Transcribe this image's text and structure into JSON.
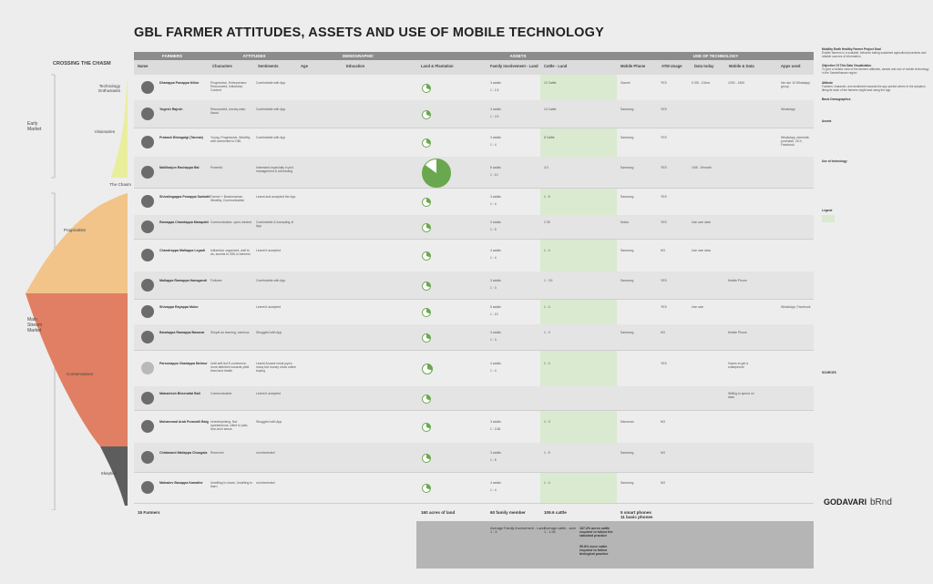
{
  "title": "GBL FARMER ATTITUDES, ASSETS AND USE OF MOBILE TECHNOLOGY",
  "chasm_heading": "CROSSING THE CHASM",
  "bands": {
    "farmers": "FARMERS",
    "attitudes": "ATTITUDES",
    "demographic": "DEMOGRAPHIC",
    "assets": "ASSETS",
    "use_of_technology": "USE OF TECHNOLOGY"
  },
  "columns": {
    "name": "Name",
    "characters": "Characters",
    "sentiments": "Sentiments",
    "age": "Age",
    "education": "Education",
    "land": "Land & Plantation",
    "family": "Family Involvement - Land",
    "cattle": "Cattle - Land",
    "mobile_phone": "Mobile Phone",
    "atm": "ATM Usage",
    "data_today": "Data today",
    "mobile_data": "Mobile & Data",
    "apps": "Apps used"
  },
  "segments": {
    "tech": "Technology Enthusiasts",
    "visionaries": "Visionaries",
    "chasm": "The Chasm",
    "pragmatists": "Pragmatists",
    "conservatives": "Conservatives",
    "skeptics": "Skeptics"
  },
  "groups": {
    "early": "Early Market",
    "main": "Main Stream Market"
  },
  "farmers": [
    {
      "name": "Dharappa Punappa Kittur",
      "character": "Progressive, Entrepreneur Resourceful, Influential, Content",
      "sentiment": "Comfortable with App",
      "family": "3 adults",
      "ratio": "1 : 1.5",
      "cattle": "12 Cattle",
      "phone": "Xiaomi",
      "atm": "YES",
      "data": "5 GB - 10/mo",
      "mdata": "1200 - 1500",
      "apps": "Ide use 10 Whatsapp group."
    },
    {
      "name": "Yogesh Rajesh",
      "character": "Resourceful, money-wise, Naval",
      "sentiment": "Comfortable with App",
      "family": "3 adults",
      "ratio": "1 : 2.5",
      "cattle": "14 Cattle",
      "phone": "Samsung",
      "atm": "YES",
      "data": "",
      "mdata": "",
      "apps": "WhatsApp"
    },
    {
      "name": "Prakash Bheagalgi (Tanmai)",
      "character": "Young, Progressive, Wealthy, well connected to GBL",
      "sentiment": "Comfortable with App",
      "family": "3 adults",
      "ratio": "1 : 4",
      "cattle": "8 Cattle",
      "phone": "Samsung",
      "atm": "YES",
      "data": "",
      "mdata": "",
      "apps": "WhatsApp, domestic purchase, OLX, Facebook"
    },
    {
      "name": "Mallikarjun Rachappa Bal",
      "character": "Powerful",
      "sentiment": "Interested especially in plot management & scheduling",
      "family": "8 adults",
      "ratio": "1 : 10",
      "cattle": "3:3",
      "phone": "Samsung",
      "atm": "YES",
      "data": "1GB - 5/month",
      "mdata": "",
      "apps": ""
    },
    {
      "name": "Shivalingappa Ponappa Sankatti",
      "character": "Farmer + Businessman, Wealthy, Communicative",
      "sentiment": "Learnt and accepted the App",
      "family": "3 adults",
      "ratio": "1 : 4",
      "cattle": "1 : 6",
      "phone": "Samsung",
      "atm": "YES",
      "data": "",
      "mdata": "",
      "apps": ""
    },
    {
      "name": "Ramappa Chandappa Marapatti",
      "character": "Communicative, open-minded",
      "sentiment": "Comfortable & Accepting of App",
      "family": "3 adults",
      "ratio": "1 : 5",
      "cattle": "2.35",
      "phone": "Nokia",
      "atm": "YES",
      "data": "Use own data",
      "mdata": "",
      "apps": ""
    },
    {
      "name": "Chandrappa Mallappa Legadi",
      "character": "Influential, organized, well to do, access to GBL to farmers",
      "sentiment": "Learnt it accepted",
      "family": "4 adults",
      "ratio": "1 : 4",
      "cattle": "1 : 4",
      "phone": "Samsung",
      "atm": "NO",
      "data": "Use own data",
      "mdata": "",
      "apps": ""
    },
    {
      "name": "Mallappa Ramappa Hanagandi",
      "character": "Follower",
      "sentiment": "Comfortable with App",
      "family": "3 adults",
      "ratio": "1 : 3",
      "cattle": "1 : 3.5",
      "phone": "Samsung",
      "atm": "YES",
      "data": "",
      "mdata": "Mobile Phone",
      "apps": ""
    },
    {
      "name": "Shivappa Rayappa Mulur",
      "character": "",
      "sentiment": "Learnt it accepted",
      "family": "5 adults",
      "ratio": "1 : 10",
      "cattle": "1 : 4",
      "phone": "",
      "atm": "YES",
      "data": "Use own",
      "mdata": "",
      "apps": "WhatsApp, Facebook"
    },
    {
      "name": "Baralappa Ramappa Basavar",
      "character": "Simple as learning, cautious",
      "sentiment": "Struggled with App",
      "family": "3 adults",
      "ratio": "1 : 3",
      "cattle": "1 : 3",
      "phone": "Samsung",
      "atm": "NO",
      "data": "",
      "mdata": "Mobile Phone",
      "apps": ""
    },
    {
      "name": "Parsonappa Viradappa Melmur",
      "character": "Until self-led E-commerce, more attentive towards yield than land health",
      "sentiment": "Learnt Around nests joys's many but money show online buying",
      "family": "4 adults",
      "ratio": "1 : 4",
      "cattle": "1 : 4",
      "phone": "",
      "atm": "YES",
      "data": "",
      "mdata": "Hopes to get a smartphone",
      "apps": ""
    },
    {
      "name": "Mahantesh Bheeraltal Bali",
      "character": "Communicative",
      "sentiment": "Learnt it accepted",
      "family": "",
      "ratio": "",
      "cattle": "",
      "phone": "",
      "atm": "",
      "data": "",
      "mdata": "Willing to spend on data",
      "apps": ""
    },
    {
      "name": "Muhammad Arab Puravalli Baig",
      "character": "Unenterprising, Not spontaneous, client to plan, Non-tech sense",
      "sentiment": "Struggled with App",
      "family": "3 adults",
      "ratio": "1 : 3.36",
      "cattle": "1 : 3",
      "phone": "Micromax",
      "atm": "NO",
      "data": "",
      "mdata": "",
      "apps": ""
    },
    {
      "name": "Chidanand Mallappa Chougala",
      "character": "Reserved",
      "sentiment": "not interested",
      "family": "3 adults",
      "ratio": "1 : 5",
      "cattle": "1 : 5",
      "phone": "Samsung",
      "atm": "NO",
      "data": "",
      "mdata": "",
      "apps": ""
    },
    {
      "name": "Mahadev Basappa Kamathe",
      "character": "Unwilling to share, Unwilling to learn",
      "sentiment": "not interested",
      "family": "4 adults",
      "ratio": "1 : 4",
      "cattle": "1 : 4",
      "phone": "Samsung",
      "atm": "NO",
      "data": "",
      "mdata": "",
      "apps": ""
    }
  ],
  "totals": {
    "farmers": "15 Farmers",
    "land": "160 acres of land",
    "family": "60 family member",
    "cattle": "109.6 cattle",
    "phones": "5 smart phones\n11 basic phones"
  },
  "bottom": {
    "family": "Average Family Involvement - Land\n1 : 3",
    "cattle": "Average cattle - acre\n1 : 1.54",
    "acres1": "187.4% acres cattle required to follow the standard practice",
    "acres2": "55.8% more cattle required to follow biological practice"
  },
  "side": {
    "goal_title": "Mobility Earth Healthy Farmer Project Goal",
    "goal": "Enable farmers in a scalable, behavior taking sustained agricultural practices and reliable sources of information.",
    "obj_title": "Objective Of This Data Visualization",
    "obj": "To give a holistic view of the farmers attitudes, assets and use of mobile technology in the Samarthanam region.",
    "att_title": "Attitude",
    "att": "Farmers' character, and sentiment towards the app predict where in the adoption lifecycle each of the farmers might land using the app.",
    "demo_title": "Basic Demographics",
    "assets_title": "Assets",
    "tech_title": "Use of technology",
    "legend_title": "Legend",
    "source_title": "SOURCES"
  },
  "brand": {
    "left": "GODAVARI",
    "right": "bRnd"
  },
  "colors": {
    "green": "#6aa84f",
    "light_green": "#d9ead0",
    "tech": "#e9ee9c",
    "chasm": "#f6f8dc",
    "pragmatists": "#f2c48a",
    "conservatives": "#e07f63",
    "skeptics": "#5d5d5d"
  }
}
